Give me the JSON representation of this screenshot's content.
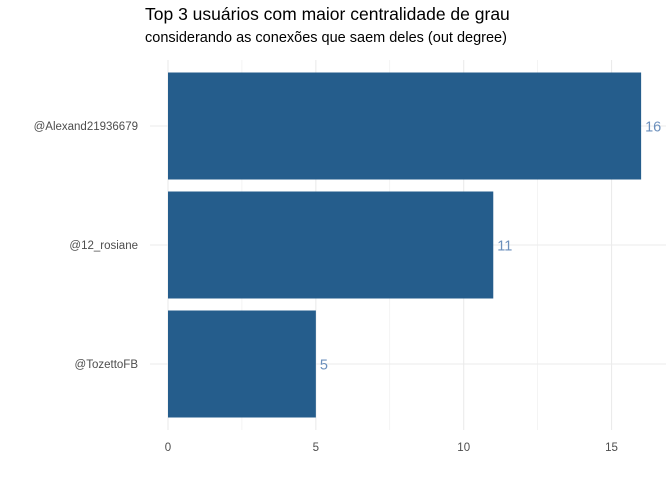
{
  "chart_data": {
    "type": "bar",
    "orientation": "horizontal",
    "title": "Top 3 usuários com maior centralidade de grau",
    "subtitle": "considerando as conexões que saem deles (out degree)",
    "xlabel": "",
    "ylabel": "",
    "categories": [
      "@Alexand21936679",
      "@12_rosiane",
      "@TozettoFB"
    ],
    "values": [
      16,
      11,
      5
    ],
    "data_labels": [
      "16",
      "11",
      "5"
    ],
    "xlim": [
      0,
      17
    ],
    "xticks": [
      "0",
      "5",
      "10",
      "15"
    ],
    "grid": true,
    "legend": "none",
    "colors": {
      "bar": "#255D8C",
      "label": "#6B8FBC",
      "grid": "#EBEBEB",
      "tick_text": "#4D4D4D"
    }
  }
}
